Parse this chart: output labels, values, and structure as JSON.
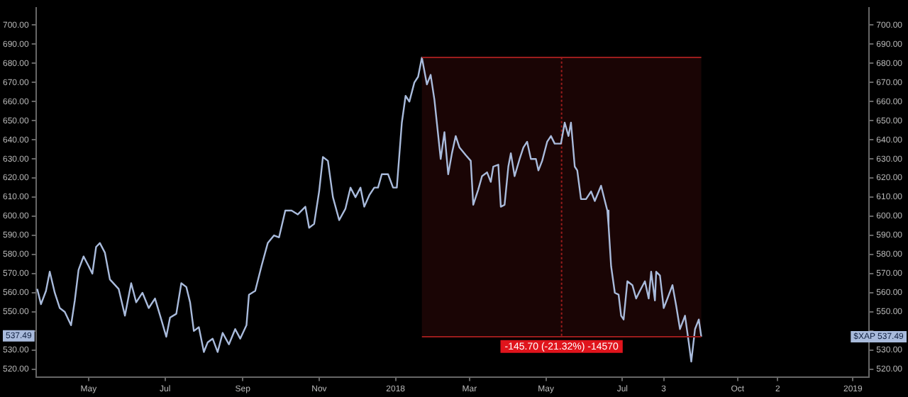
{
  "chart_data": {
    "type": "line",
    "x": [
      "2017-03-21",
      "2017-03-24",
      "2017-03-28",
      "2017-03-31",
      "2017-04-04",
      "2017-04-08",
      "2017-04-12",
      "2017-04-17",
      "2017-04-20",
      "2017-04-23",
      "2017-04-27",
      "2017-05-01",
      "2017-05-04",
      "2017-05-07",
      "2017-05-10",
      "2017-05-14",
      "2017-05-18",
      "2017-05-25",
      "2017-05-30",
      "2017-06-04",
      "2017-06-08",
      "2017-06-13",
      "2017-06-18",
      "2017-06-23",
      "2017-06-28",
      "2017-07-02",
      "2017-07-05",
      "2017-07-10",
      "2017-07-14",
      "2017-07-18",
      "2017-07-21",
      "2017-07-24",
      "2017-07-28",
      "2017-08-01",
      "2017-08-04",
      "2017-08-08",
      "2017-08-12",
      "2017-08-16",
      "2017-08-21",
      "2017-08-26",
      "2017-08-30",
      "2017-09-04",
      "2017-09-06",
      "2017-09-11",
      "2017-09-16",
      "2017-09-21",
      "2017-09-26",
      "2017-09-30",
      "2017-10-05",
      "2017-10-10",
      "2017-10-15",
      "2017-10-21",
      "2017-10-24",
      "2017-10-28",
      "2017-11-01",
      "2017-11-04",
      "2017-11-08",
      "2017-11-12",
      "2017-11-17",
      "2017-11-22",
      "2017-11-26",
      "2017-11-30",
      "2017-12-04",
      "2017-12-07",
      "2017-12-11",
      "2017-12-15",
      "2017-12-18",
      "2017-12-21",
      "2017-12-26",
      "2017-12-30",
      "2018-01-02",
      "2018-01-06",
      "2018-01-09",
      "2018-01-12",
      "2018-01-16",
      "2018-01-19",
      "2018-01-22",
      "2018-01-26",
      "2018-01-29",
      "2018-02-01",
      "2018-02-06",
      "2018-02-09",
      "2018-02-12",
      "2018-02-15",
      "2018-02-18",
      "2018-02-21",
      "2018-02-26",
      "2018-03-02",
      "2018-03-04",
      "2018-03-08",
      "2018-03-11",
      "2018-03-15",
      "2018-03-18",
      "2018-03-20",
      "2018-03-24",
      "2018-03-26",
      "2018-03-29",
      "2018-04-01",
      "2018-04-03",
      "2018-04-06",
      "2018-04-10",
      "2018-04-13",
      "2018-04-16",
      "2018-04-19",
      "2018-04-23",
      "2018-04-25",
      "2018-04-28",
      "2018-05-02",
      "2018-05-05",
      "2018-05-08",
      "2018-05-13",
      "2018-05-16",
      "2018-05-19",
      "2018-05-21",
      "2018-05-24",
      "2018-05-26",
      "2018-05-29",
      "2018-06-02",
      "2018-06-06",
      "2018-06-09",
      "2018-06-14",
      "2018-06-19",
      "2018-06-20",
      "2018-06-22",
      "2018-06-25",
      "2018-06-28",
      "2018-06-30",
      "2018-07-02",
      "2018-07-05",
      "2018-07-09",
      "2018-07-12",
      "2018-07-15",
      "2018-07-19",
      "2018-07-22",
      "2018-07-24",
      "2018-07-27",
      "2018-07-28",
      "2018-07-31",
      "2018-08-03",
      "2018-08-06",
      "2018-08-10",
      "2018-08-13",
      "2018-08-16",
      "2018-08-20",
      "2018-08-23",
      "2018-08-25",
      "2018-08-28",
      "2018-08-31",
      "2018-09-02"
    ],
    "series": [
      {
        "color": "#a9bbdc",
        "values": [
          562,
          554,
          561,
          571,
          560,
          552,
          550,
          543,
          556,
          572,
          579,
          574,
          570,
          584,
          586,
          581,
          567,
          562,
          548,
          565,
          555,
          560,
          552,
          557,
          546,
          537,
          547,
          549,
          565,
          563,
          555,
          540,
          542,
          529,
          534,
          536,
          529,
          539,
          533,
          541,
          536,
          543,
          559,
          561,
          574,
          586,
          590,
          589,
          603,
          603,
          601,
          605,
          594,
          596,
          613,
          631,
          629,
          610,
          598,
          604,
          615,
          610,
          615,
          605,
          611,
          615,
          615,
          622,
          622,
          615,
          615,
          649,
          663,
          660,
          670,
          673,
          683,
          669,
          674,
          661,
          630,
          644,
          622,
          633,
          642,
          636,
          632,
          629,
          606,
          614,
          621,
          623,
          618,
          626,
          627,
          605,
          606,
          626,
          633,
          621,
          630,
          636,
          639,
          630,
          630,
          624,
          629,
          639,
          642,
          638,
          638,
          649,
          642,
          649,
          626,
          624,
          609,
          609,
          613,
          608,
          616,
          603,
          595,
          574,
          560,
          559,
          548,
          546,
          566,
          564,
          557,
          561,
          566,
          557,
          571,
          556,
          571,
          569,
          552,
          557,
          564,
          553,
          541,
          548,
          534,
          524,
          541,
          546,
          537
        ]
      }
    ],
    "xlim": [
      "2017-03-20",
      "2019-01-14"
    ],
    "xticks": [
      {
        "value": "2017-05-01",
        "label": "May"
      },
      {
        "value": "2017-07-01",
        "label": "Jul"
      },
      {
        "value": "2017-09-01",
        "label": "Sep"
      },
      {
        "value": "2017-11-01",
        "label": "Nov"
      },
      {
        "value": "2018-01-01",
        "label": "2018"
      },
      {
        "value": "2018-03-01",
        "label": "Mar"
      },
      {
        "value": "2018-05-01",
        "label": "May"
      },
      {
        "value": "2018-07-01",
        "label": "Jul"
      },
      {
        "value": "2018-08-03",
        "label": "3"
      },
      {
        "value": "2018-10-01",
        "label": "Oct"
      },
      {
        "value": "2018-11-02",
        "label": "2"
      },
      {
        "value": "2019-01-01",
        "label": "2019"
      }
    ],
    "ylim": [
      516,
      709
    ],
    "yticks": [
      {
        "value": 520,
        "label": "520.00"
      },
      {
        "value": 530,
        "label": "530.00"
      },
      {
        "value": 540,
        "label": null
      },
      {
        "value": 550,
        "label": "550.00"
      },
      {
        "value": 560,
        "label": "560.00"
      },
      {
        "value": 570,
        "label": "570.00"
      },
      {
        "value": 580,
        "label": "580.00"
      },
      {
        "value": 590,
        "label": "590.00"
      },
      {
        "value": 600,
        "label": "600.00"
      },
      {
        "value": 610,
        "label": "610.00"
      },
      {
        "value": 620,
        "label": "620.00"
      },
      {
        "value": 630,
        "label": "630.00"
      },
      {
        "value": 640,
        "label": "640.00"
      },
      {
        "value": 650,
        "label": "650.00"
      },
      {
        "value": 660,
        "label": "660.00"
      },
      {
        "value": 670,
        "label": "670.00"
      },
      {
        "value": 680,
        "label": "680.00"
      },
      {
        "value": 690,
        "label": "690.00"
      },
      {
        "value": 700,
        "label": "700.00"
      }
    ],
    "y2lim": [
      516,
      709
    ],
    "y2ticks": [
      {
        "value": 520,
        "label": "520.00"
      },
      {
        "value": 530,
        "label": "530.00"
      },
      {
        "value": 540,
        "label": null
      },
      {
        "value": 550,
        "label": "550.00"
      },
      {
        "value": 560,
        "label": "560.00"
      },
      {
        "value": 570,
        "label": "570.00"
      },
      {
        "value": 580,
        "label": "580.00"
      },
      {
        "value": 590,
        "label": "590.00"
      },
      {
        "value": 600,
        "label": "600.00"
      },
      {
        "value": 610,
        "label": "610.00"
      },
      {
        "value": 620,
        "label": "620.00"
      },
      {
        "value": 630,
        "label": "630.00"
      },
      {
        "value": 640,
        "label": "640.00"
      },
      {
        "value": 650,
        "label": "650.00"
      },
      {
        "value": 660,
        "label": "660.00"
      },
      {
        "value": 670,
        "label": "670.00"
      },
      {
        "value": 680,
        "label": "680.00"
      },
      {
        "value": 690,
        "label": "690.00"
      },
      {
        "value": 700,
        "label": "700.00"
      }
    ],
    "bands": [
      {
        "axis": "x",
        "from": "2018-01-22",
        "to": "2018-09-02",
        "label": "-145.70 (-21.32%) -14570",
        "color": "#9b1c1c"
      }
    ],
    "ref_lines": [
      {
        "axis": "y",
        "value": 683.19,
        "color": "#9b1c1c"
      },
      {
        "axis": "y",
        "value": 537.49,
        "color": "#9b1c1c"
      }
    ],
    "annotations": [
      {
        "text": "537.49",
        "y": 537.49
      },
      "$XAP 537.49"
    ],
    "grid": false,
    "legend": false
  }
}
